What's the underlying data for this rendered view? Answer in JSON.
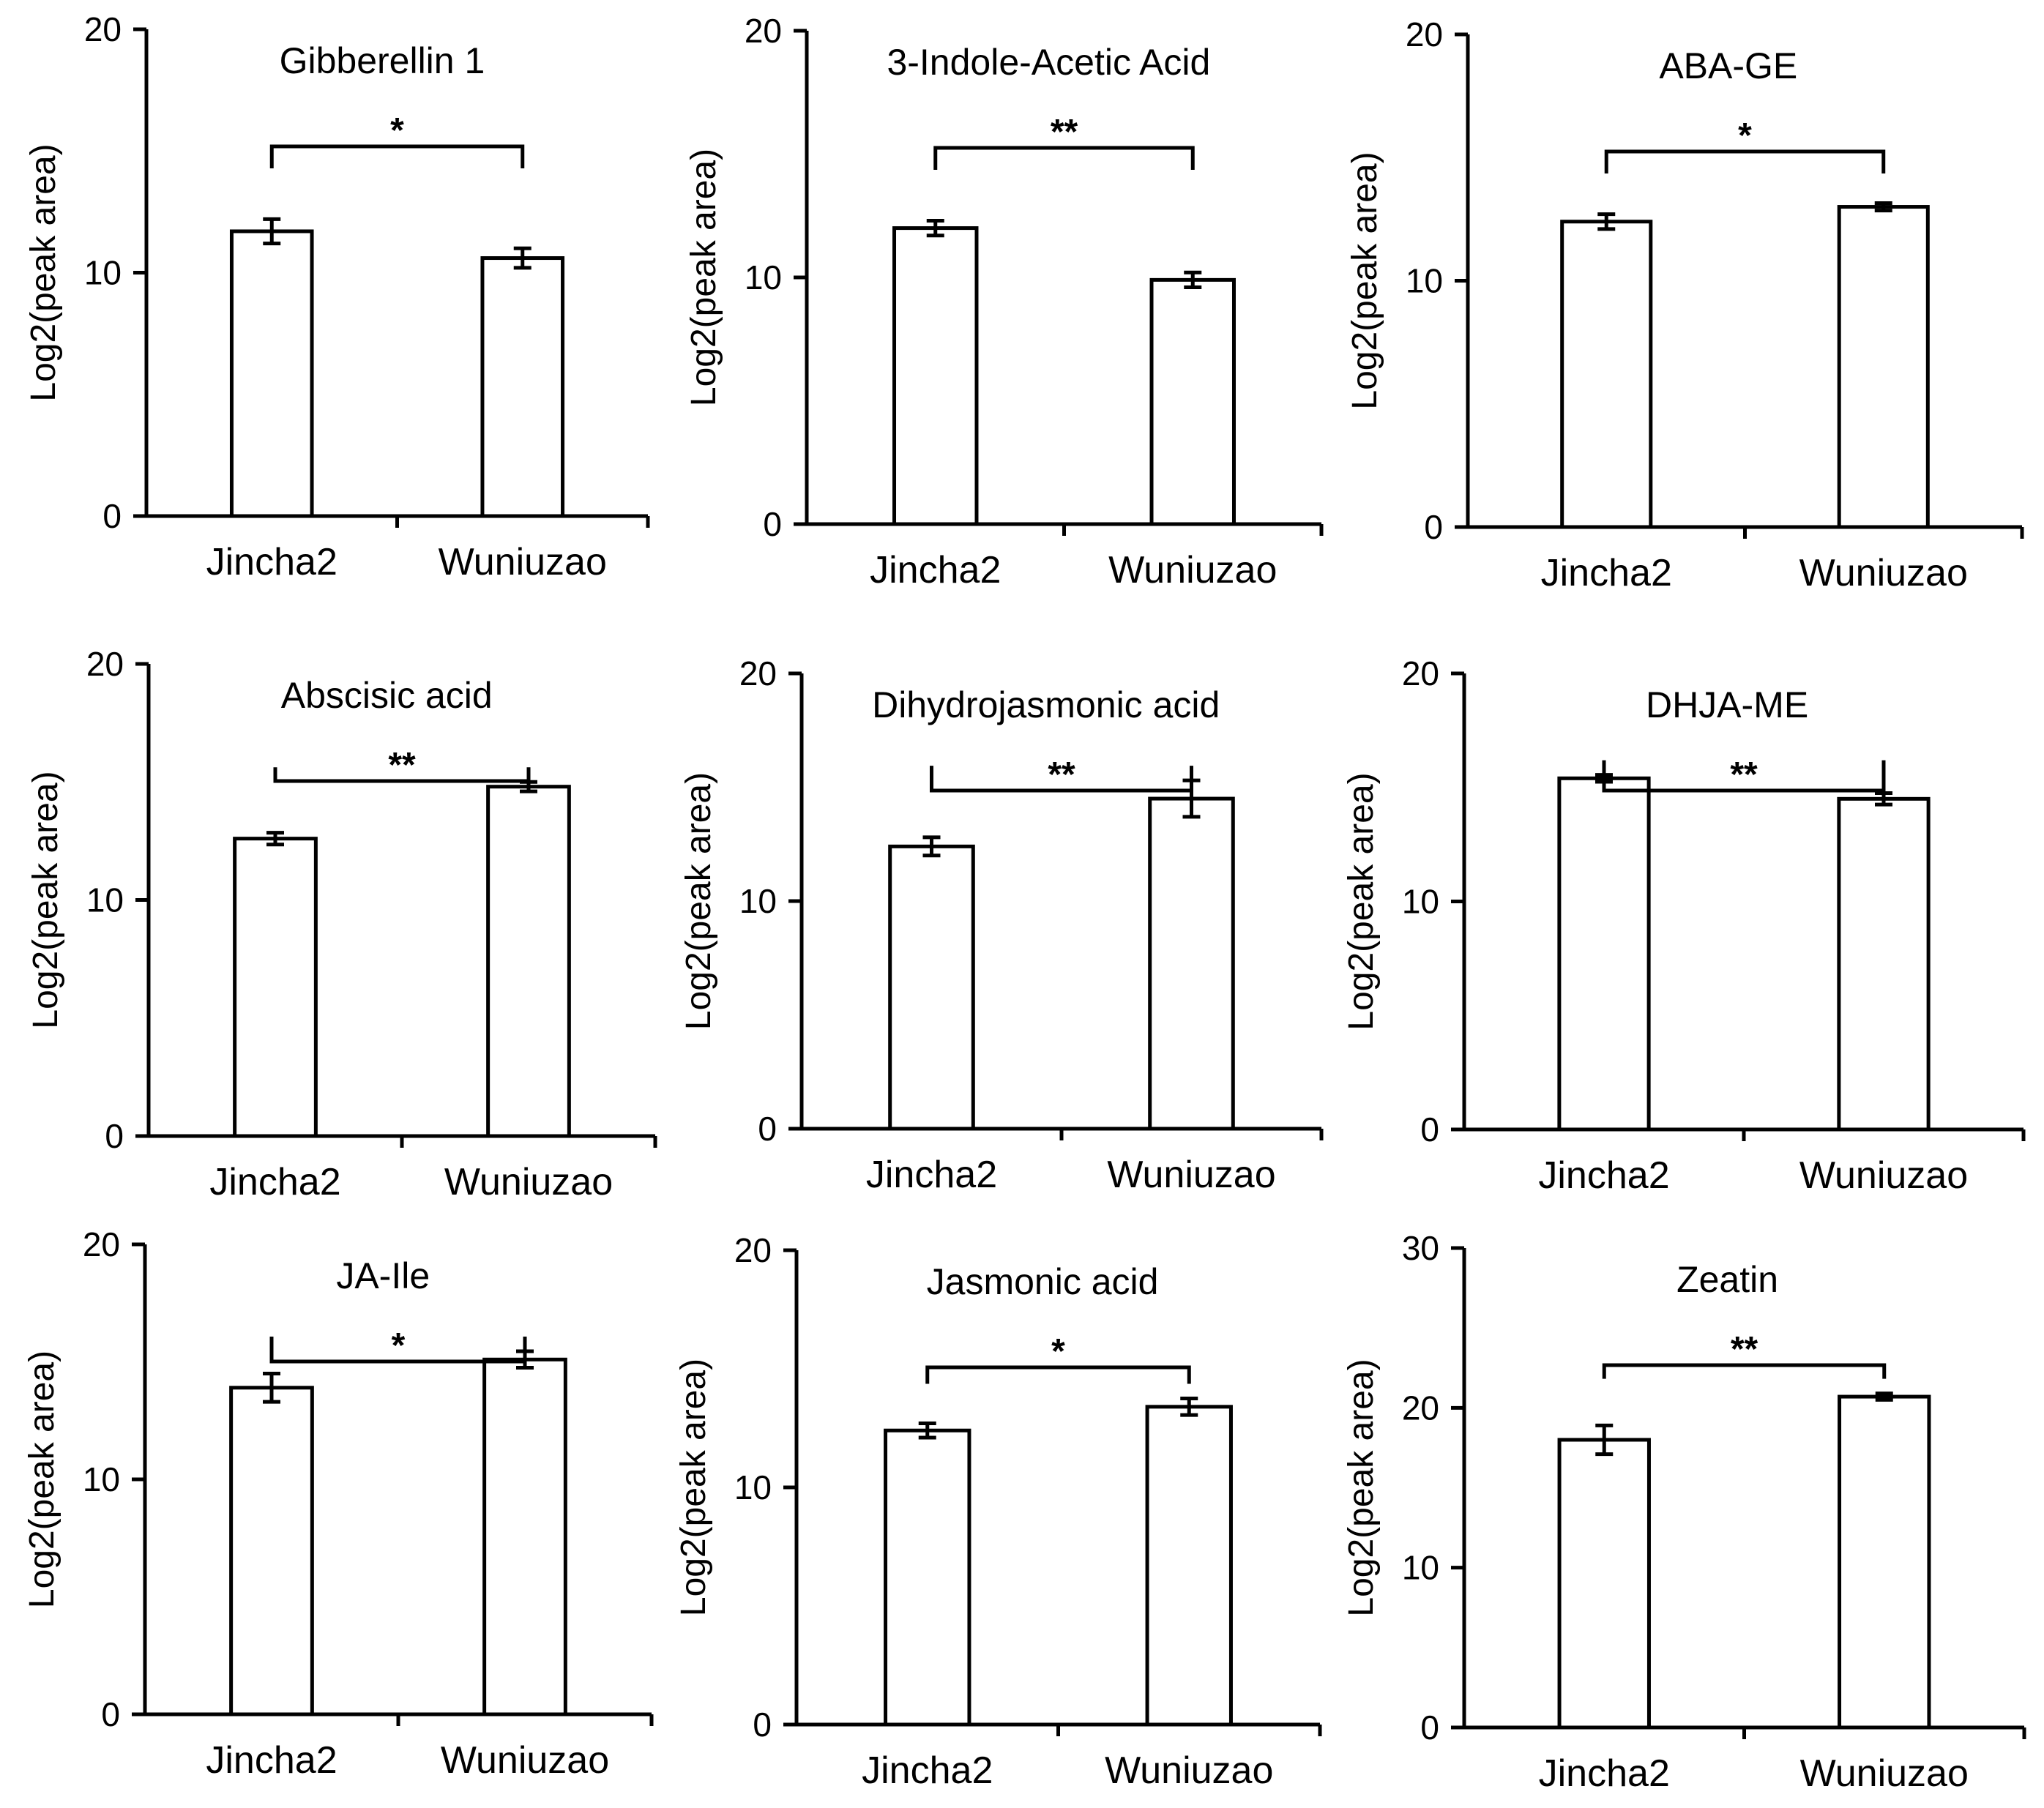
{
  "chart_data": [
    {
      "type": "bar",
      "title": "Gibberellin 1",
      "ylabel": "Log2(peak area)",
      "ylim": [
        0,
        20
      ],
      "yticks": [
        0,
        10,
        20
      ],
      "categories": [
        "Jincha2",
        "Wuniuzao"
      ],
      "values": [
        11.7,
        10.6
      ],
      "errors": [
        0.5,
        0.4
      ],
      "significance": "*"
    },
    {
      "type": "bar",
      "title": "3-Indole-Acetic Acid",
      "ylabel": "Log2(peak area)",
      "ylim": [
        0,
        20
      ],
      "yticks": [
        0,
        10,
        20
      ],
      "categories": [
        "Jincha2",
        "Wuniuzao"
      ],
      "values": [
        12.0,
        9.9
      ],
      "errors": [
        0.3,
        0.3
      ],
      "significance": "**"
    },
    {
      "type": "bar",
      "title": "ABA-GE",
      "ylabel": "Log2(peak area)",
      "ylim": [
        0,
        20
      ],
      "yticks": [
        0,
        10,
        20
      ],
      "categories": [
        "Jincha2",
        "Wuniuzao"
      ],
      "values": [
        12.4,
        13.0
      ],
      "errors": [
        0.3,
        0.15
      ],
      "significance": "*"
    },
    {
      "type": "bar",
      "title": "Abscisic acid",
      "ylabel": "Log2(peak area)",
      "ylim": [
        0,
        20
      ],
      "yticks": [
        0,
        10,
        20
      ],
      "categories": [
        "Jincha2",
        "Wuniuzao"
      ],
      "values": [
        12.6,
        14.8
      ],
      "errors": [
        0.25,
        0.2
      ],
      "significance": "**"
    },
    {
      "type": "bar",
      "title": "Dihydrojasmonic acid",
      "ylabel": "Log2(peak area)",
      "ylim": [
        0,
        20
      ],
      "yticks": [
        0,
        10,
        20
      ],
      "categories": [
        "Jincha2",
        "Wuniuzao"
      ],
      "values": [
        12.4,
        14.5
      ],
      "errors": [
        0.4,
        0.8
      ],
      "significance": "**"
    },
    {
      "type": "bar",
      "title": "DHJA-ME",
      "ylabel": "Log2(peak area)",
      "ylim": [
        0,
        20
      ],
      "yticks": [
        0,
        10,
        20
      ],
      "categories": [
        "Jincha2",
        "Wuniuzao"
      ],
      "values": [
        15.4,
        14.5
      ],
      "errors": [
        0.15,
        0.25
      ],
      "significance": "**"
    },
    {
      "type": "bar",
      "title": "JA-Ile",
      "ylabel": "Log2(peak area)",
      "ylim": [
        0,
        20
      ],
      "yticks": [
        0,
        10,
        20
      ],
      "categories": [
        "Jincha2",
        "Wuniuzao"
      ],
      "values": [
        13.9,
        15.1
      ],
      "errors": [
        0.6,
        0.35
      ],
      "significance": "*"
    },
    {
      "type": "bar",
      "title": "Jasmonic acid",
      "ylabel": "Log2(peak area)",
      "ylim": [
        0,
        20
      ],
      "yticks": [
        0,
        10,
        20
      ],
      "categories": [
        "Jincha2",
        "Wuniuzao"
      ],
      "values": [
        12.4,
        13.4
      ],
      "errors": [
        0.3,
        0.35
      ],
      "significance": "*"
    },
    {
      "type": "bar",
      "title": "Zeatin",
      "ylabel": "Log2(peak area)",
      "ylim": [
        0,
        30
      ],
      "yticks": [
        0,
        10,
        20,
        30
      ],
      "categories": [
        "Jincha2",
        "Wuniuzao"
      ],
      "values": [
        18.0,
        20.7
      ],
      "errors": [
        0.9,
        0.2
      ],
      "significance": "**"
    }
  ]
}
